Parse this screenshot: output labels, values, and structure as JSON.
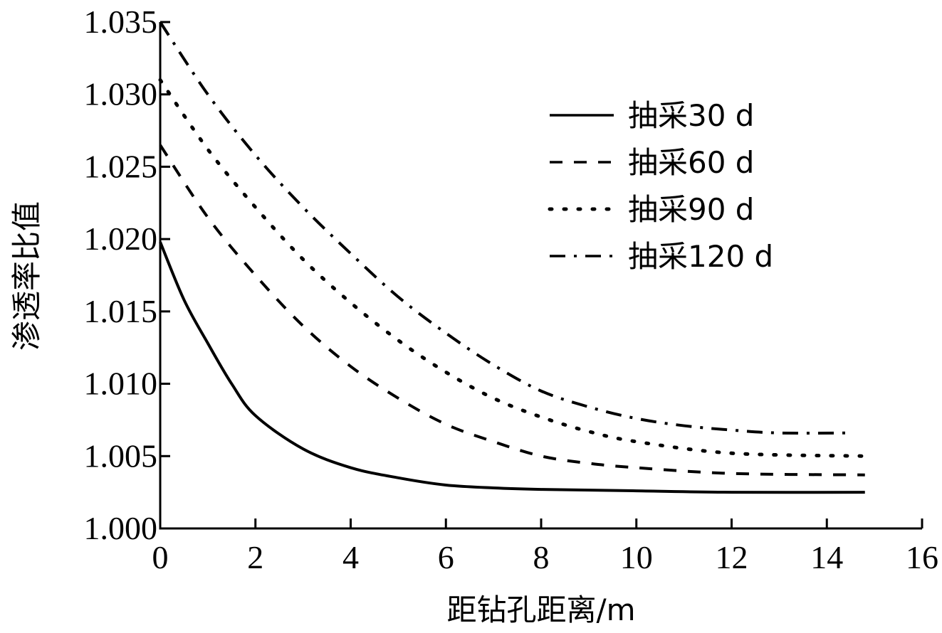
{
  "chart_data": {
    "type": "line",
    "title": "",
    "xlabel": "距钻孔距离/m",
    "ylabel": "渗透率比值",
    "xlim": [
      0,
      16
    ],
    "ylim": [
      1.0,
      1.035
    ],
    "xticks": [
      0,
      2,
      4,
      6,
      8,
      10,
      12,
      14,
      16
    ],
    "xtick_labels": [
      "0",
      "2",
      "4",
      "6",
      "8",
      "10",
      "12",
      "14",
      "16"
    ],
    "yticks": [
      1.0,
      1.005,
      1.01,
      1.015,
      1.02,
      1.025,
      1.03,
      1.035
    ],
    "ytick_labels": [
      "1.000",
      "1.005",
      "1.010",
      "1.015",
      "1.020",
      "1.025",
      "1.030",
      "1.035"
    ],
    "grid": false,
    "legend_position": "upper right",
    "series": [
      {
        "name": "抽采30 d",
        "style": "solid",
        "x": [
          0,
          0.5,
          1,
          1.5,
          2,
          3,
          4,
          5,
          6,
          7,
          8,
          10,
          12,
          14.8
        ],
        "values": [
          1.0198,
          1.0158,
          1.0128,
          1.01,
          1.0078,
          1.0055,
          1.0042,
          1.0035,
          1.003,
          1.0028,
          1.0027,
          1.0026,
          1.0025,
          1.0025
        ]
      },
      {
        "name": "抽采60 d",
        "style": "dashed",
        "x": [
          0,
          1,
          2,
          3,
          4,
          5,
          6,
          7,
          8,
          9,
          10,
          12,
          14.8
        ],
        "values": [
          1.0265,
          1.0215,
          1.0175,
          1.014,
          1.0112,
          1.009,
          1.0072,
          1.006,
          1.005,
          1.0045,
          1.0042,
          1.0038,
          1.0037
        ]
      },
      {
        "name": "抽采90 d",
        "style": "dotted",
        "x": [
          0,
          1,
          2,
          3,
          4,
          5,
          6,
          7,
          8,
          9,
          10,
          12,
          14.8
        ],
        "values": [
          1.031,
          1.0262,
          1.0222,
          1.0186,
          1.0156,
          1.013,
          1.0108,
          1.009,
          1.0077,
          1.0067,
          1.006,
          1.0052,
          1.005
        ]
      },
      {
        "name": "抽采120 d",
        "style": "dashdot",
        "x": [
          0,
          1,
          2,
          3,
          4,
          5,
          6,
          7,
          8,
          9,
          10,
          11,
          12,
          13,
          14.5
        ],
        "values": [
          1.035,
          1.03,
          1.0258,
          1.0222,
          1.019,
          1.016,
          1.0135,
          1.0113,
          1.0095,
          1.0084,
          1.0076,
          1.0071,
          1.0068,
          1.0066,
          1.0066
        ]
      }
    ]
  },
  "legend": {
    "items": [
      {
        "label": "抽采30 d",
        "style": "solid"
      },
      {
        "label": "抽采60 d",
        "style": "dashed"
      },
      {
        "label": "抽采90 d",
        "style": "dotted"
      },
      {
        "label": "抽采120 d",
        "style": "dashdot"
      }
    ]
  },
  "colors": {
    "line": "#000000",
    "background": "#ffffff"
  }
}
